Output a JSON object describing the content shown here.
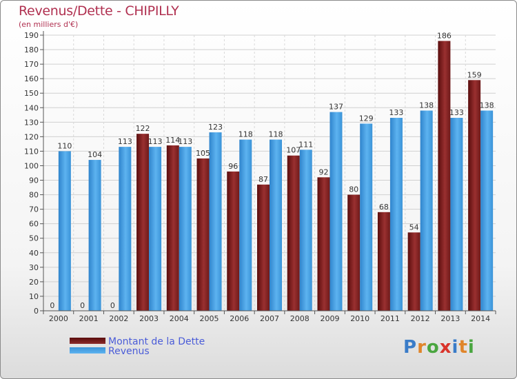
{
  "chart_data": {
    "type": "bar",
    "title": "Revenus/Dette - CHIPILLY",
    "subtitle": "(en milliers d'€)",
    "categories": [
      "2000",
      "2001",
      "2002",
      "2003",
      "2004",
      "2005",
      "2006",
      "2007",
      "2008",
      "2009",
      "2010",
      "2011",
      "2012",
      "2013",
      "2014"
    ],
    "series": [
      {
        "name": "Montant de la Dette",
        "color": "#7a1a1a",
        "values": [
          0,
          0,
          0,
          122,
          114,
          105,
          96,
          87,
          107,
          92,
          80,
          68,
          54,
          186,
          159
        ]
      },
      {
        "name": "Revenus",
        "color": "#4aa3e6",
        "values": [
          110,
          104,
          113,
          113,
          113,
          123,
          118,
          118,
          111,
          137,
          129,
          133,
          138,
          133,
          138
        ]
      }
    ],
    "yticks": [
      0,
      10,
      20,
      30,
      40,
      50,
      60,
      70,
      80,
      90,
      100,
      110,
      120,
      130,
      140,
      150,
      160,
      170,
      180,
      190
    ],
    "ylim": [
      0,
      190
    ],
    "grid": true,
    "legend_position": "bottom-left"
  },
  "logo": {
    "text": "Proxiti",
    "letters": [
      "P",
      "r",
      "o",
      "x",
      "i",
      "t",
      "i"
    ],
    "colors": [
      "#3a7cc8",
      "#e0852a",
      "#4aa640",
      "#d9342b",
      "#3a7cc8",
      "#e0852a",
      "#4aa640"
    ]
  }
}
